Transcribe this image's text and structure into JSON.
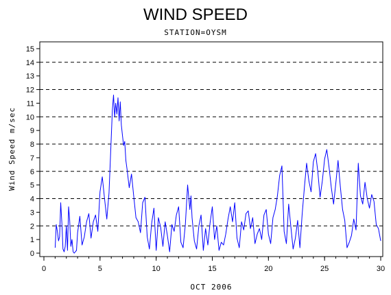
{
  "chart_data": {
    "type": "line",
    "title": "WIND SPEED",
    "subtitle": "STATION=OYSM",
    "xlabel": "OCT 2006",
    "ylabel": "Wind Speed m/sec",
    "xlim": [
      0,
      30
    ],
    "ylim": [
      0,
      15.5
    ],
    "x_ticks": [
      0,
      5,
      10,
      15,
      20,
      25,
      30
    ],
    "y_ticks": [
      0,
      1,
      2,
      3,
      4,
      5,
      6,
      7,
      8,
      9,
      10,
      11,
      12,
      13,
      14,
      15
    ],
    "gridlines_y": [
      2,
      4,
      6,
      8,
      10,
      12,
      14
    ],
    "grid": "dashed horizontal",
    "line_color": "#0000ff",
    "series": [
      {
        "x": [
          1.0,
          1.1,
          1.2,
          1.3,
          1.4,
          1.5,
          1.6,
          1.7,
          1.8,
          1.9,
          2.0,
          2.1,
          2.2,
          2.3,
          2.4,
          2.5,
          2.6,
          2.7,
          2.8,
          2.9,
          3.0,
          3.2,
          3.4,
          3.6,
          3.8,
          4.0,
          4.2,
          4.4,
          4.6,
          4.8,
          5.0,
          5.2,
          5.4,
          5.6,
          5.8,
          6.0,
          6.1,
          6.2,
          6.3,
          6.4,
          6.5,
          6.6,
          6.7,
          6.8,
          6.9,
          7.0,
          7.1,
          7.2,
          7.3,
          7.4,
          7.6,
          7.8,
          8.0,
          8.2,
          8.4,
          8.6,
          8.8,
          9.0,
          9.2,
          9.4,
          9.6,
          9.8,
          10.0,
          10.2,
          10.4,
          10.6,
          10.8,
          11.0,
          11.2,
          11.4,
          11.6,
          11.8,
          12.0,
          12.2,
          12.4,
          12.6,
          12.8,
          13.0,
          13.1,
          13.2,
          13.3,
          13.4,
          13.6,
          13.8,
          14.0,
          14.2,
          14.4,
          14.6,
          14.8,
          15.0,
          15.2,
          15.4,
          15.6,
          15.8,
          16.0,
          16.2,
          16.4,
          16.6,
          16.8,
          17.0,
          17.2,
          17.4,
          17.6,
          17.8,
          18.0,
          18.2,
          18.4,
          18.6,
          18.8,
          19.0,
          19.2,
          19.4,
          19.6,
          19.8,
          20.0,
          20.2,
          20.4,
          20.6,
          20.8,
          21.0,
          21.2,
          21.4,
          21.6,
          21.8,
          22.0,
          22.2,
          22.4,
          22.6,
          22.8,
          23.0,
          23.2,
          23.4,
          23.6,
          23.8,
          24.0,
          24.2,
          24.4,
          24.6,
          24.8,
          25.0,
          25.2,
          25.4,
          25.6,
          25.8,
          26.0,
          26.2,
          26.4,
          26.6,
          26.8,
          27.0,
          27.2,
          27.4,
          27.6,
          27.8,
          28.0,
          28.2,
          28.4,
          28.6,
          28.8,
          29.0,
          29.2,
          29.4,
          29.6,
          29.8,
          30.0
        ],
        "y": [
          0.4,
          2.1,
          1.6,
          0.9,
          1.2,
          3.7,
          2.2,
          0.3,
          0.1,
          0.5,
          2.0,
          0.2,
          3.4,
          2.4,
          0.5,
          1.0,
          0.1,
          0.0,
          0.1,
          0.2,
          1.5,
          2.7,
          0.6,
          1.2,
          2.3,
          2.9,
          1.1,
          2.3,
          2.8,
          1.6,
          4.5,
          5.6,
          4.0,
          2.5,
          4.4,
          8.5,
          10.5,
          11.6,
          10.0,
          11.0,
          10.2,
          11.4,
          9.7,
          11.1,
          9.4,
          8.6,
          7.9,
          8.2,
          6.8,
          6.2,
          4.8,
          5.8,
          4.2,
          2.6,
          2.3,
          1.5,
          3.7,
          4.1,
          1.2,
          0.3,
          2.2,
          3.3,
          0.2,
          2.6,
          1.9,
          0.5,
          2.3,
          1.3,
          0.1,
          2.1,
          1.6,
          2.8,
          3.4,
          0.8,
          0.4,
          2.1,
          5.0,
          3.2,
          4.2,
          2.6,
          1.7,
          0.9,
          0.3,
          2.0,
          2.8,
          0.2,
          1.8,
          0.6,
          2.2,
          3.4,
          1.0,
          2.0,
          0.2,
          0.8,
          0.6,
          1.4,
          2.5,
          3.4,
          2.3,
          3.7,
          1.1,
          0.4,
          2.3,
          1.7,
          2.9,
          3.1,
          1.8,
          2.6,
          0.7,
          1.4,
          1.8,
          1.0,
          2.8,
          3.2,
          1.4,
          0.7,
          2.6,
          3.2,
          4.2,
          5.7,
          6.4,
          1.6,
          0.7,
          3.6,
          1.9,
          0.3,
          1.1,
          2.4,
          0.4,
          2.8,
          4.8,
          6.6,
          5.3,
          4.5,
          6.7,
          7.3,
          6.0,
          4.1,
          5.3,
          6.9,
          7.6,
          6.3,
          4.8,
          3.6,
          5.1,
          6.8,
          4.9,
          3.2,
          2.4,
          0.4,
          0.8,
          1.3,
          2.5,
          1.7,
          6.6,
          4.2,
          3.6,
          5.2,
          4.0,
          3.3,
          4.3,
          3.8,
          2.1,
          1.8,
          0.9
        ]
      }
    ]
  }
}
